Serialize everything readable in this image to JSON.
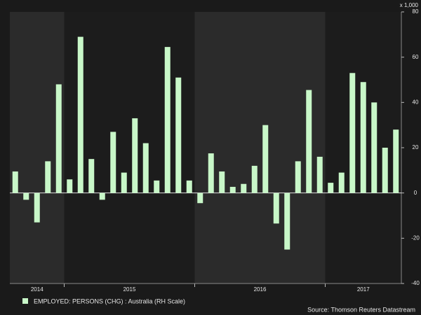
{
  "chart_data": {
    "type": "bar",
    "y_unit": "x 1,000",
    "categories": [
      "2014",
      null,
      null,
      null,
      null,
      "2015",
      null,
      null,
      null,
      null,
      null,
      null,
      null,
      null,
      null,
      null,
      null,
      "2016",
      null,
      null,
      null,
      null,
      null,
      null,
      null,
      null,
      null,
      null,
      null,
      "2017",
      null,
      null,
      null,
      null,
      null,
      null
    ],
    "series": [
      {
        "name": "EMPLOYED: PERSONS (CHG) : Australia (RH Scale)",
        "color": "#c8f7c8",
        "values": [
          9.5,
          -3,
          -13,
          14,
          48,
          6,
          69,
          15,
          -3,
          27,
          9,
          33,
          22,
          5.5,
          64.5,
          51,
          5.5,
          -4.5,
          17.5,
          9.5,
          2.7,
          4,
          12,
          30,
          -13.5,
          -25,
          14,
          45.5,
          16,
          4.5,
          9,
          53,
          49,
          40,
          20,
          28
        ]
      }
    ],
    "ylim": [
      -40,
      80
    ],
    "yticks": [
      -40,
      -20,
      0,
      20,
      40,
      60,
      80
    ],
    "y_axis_side": "right",
    "grid": false,
    "source": "Source: Thomson Reuters Datastream"
  }
}
